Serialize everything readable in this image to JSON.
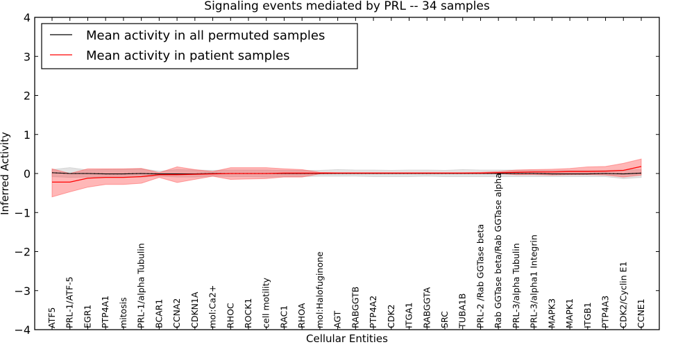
{
  "chart_data": {
    "type": "line",
    "title": "Signaling events mediated by PRL -- 34 samples",
    "xlabel": "Cellular Entities",
    "ylabel": "Inferred Activity",
    "ylim": [
      -4,
      4
    ],
    "yticks": [
      -4,
      -3,
      -2,
      -1,
      0,
      1,
      2,
      3,
      4
    ],
    "ytick_labels": [
      "−4",
      "−3",
      "−2",
      "−1",
      "0",
      "1",
      "2",
      "3",
      "4"
    ],
    "grid": false,
    "legend_position": "top-left",
    "categories": [
      "ATF5",
      "PRL-1/ATF-5",
      "EGR1",
      "PTP4A1",
      "mitosis",
      "PRL-1/alpha Tubulin",
      "BCAR1",
      "CCNA2",
      "CDKN1A",
      "mol:Ca2+",
      "RHOC",
      "ROCK1",
      "cell motility",
      "RAC1",
      "RHOA",
      "mol:Halofuginone",
      "AGT",
      "RABGGTB",
      "PTP4A2",
      "CDK2",
      "ITGA1",
      "RABGGTA",
      "SRC",
      "TUBA1B",
      "PRL-2 /Rab GGTase beta",
      "Rab GGTase beta/Rab GGTase alpha",
      "PRL-3/alpha Tubulin",
      "PRL-3/alpha1 Integrin",
      "MAPK3",
      "MAPK1",
      "ITGB1",
      "PTP4A3",
      "CDK2/Cyclin E1",
      "CCNE1"
    ],
    "series": [
      {
        "name": "Mean activity in all permuted samples",
        "color": "#000000",
        "values": [
          0.02,
          0.0,
          0.0,
          -0.01,
          -0.01,
          0.0,
          -0.01,
          -0.01,
          -0.01,
          0.0,
          0.0,
          0.0,
          0.0,
          0.0,
          0.0,
          0.0,
          0.0,
          0.0,
          0.0,
          0.0,
          0.0,
          0.0,
          0.0,
          0.0,
          0.0,
          0.0,
          0.0,
          0.0,
          -0.01,
          -0.01,
          -0.01,
          0.0,
          -0.01,
          0.01
        ],
        "band_lower": [
          -0.08,
          -0.1,
          -0.09,
          -0.09,
          -0.09,
          -0.09,
          -0.07,
          -0.09,
          -0.09,
          -0.07,
          -0.08,
          -0.08,
          -0.09,
          -0.08,
          -0.08,
          -0.07,
          -0.07,
          -0.07,
          -0.08,
          -0.08,
          -0.08,
          -0.07,
          -0.08,
          -0.08,
          -0.08,
          -0.08,
          -0.08,
          -0.08,
          -0.08,
          -0.08,
          -0.08,
          -0.08,
          -0.13,
          -0.1
        ],
        "band_upper": [
          0.1,
          0.15,
          0.09,
          0.1,
          0.11,
          0.12,
          0.06,
          0.1,
          0.09,
          0.08,
          0.09,
          0.09,
          0.09,
          0.08,
          0.08,
          0.08,
          0.1,
          0.09,
          0.09,
          0.08,
          0.09,
          0.09,
          0.08,
          0.1,
          0.09,
          0.09,
          0.09,
          0.08,
          0.08,
          0.08,
          0.08,
          0.08,
          0.09,
          0.1
        ]
      },
      {
        "name": "Mean activity in patient samples",
        "color": "#ff0000",
        "values": [
          -0.22,
          -0.22,
          -0.12,
          -0.1,
          -0.1,
          -0.08,
          -0.03,
          -0.03,
          -0.02,
          -0.01,
          0.0,
          0.0,
          0.0,
          0.01,
          0.01,
          0.01,
          0.01,
          0.01,
          0.01,
          0.01,
          0.01,
          0.01,
          0.01,
          0.01,
          0.01,
          0.02,
          0.03,
          0.04,
          0.04,
          0.05,
          0.05,
          0.06,
          0.08,
          0.18
        ],
        "band_lower": [
          -0.6,
          -0.47,
          -0.35,
          -0.28,
          -0.28,
          -0.25,
          -0.1,
          -0.23,
          -0.15,
          -0.07,
          -0.15,
          -0.14,
          -0.13,
          -0.09,
          -0.09,
          -0.01,
          0.0,
          0.0,
          0.0,
          0.0,
          0.0,
          0.0,
          0.0,
          0.0,
          0.0,
          0.0,
          -0.03,
          -0.03,
          -0.04,
          -0.03,
          -0.03,
          -0.04,
          -0.09,
          -0.04
        ],
        "band_upper": [
          0.12,
          0.0,
          0.12,
          0.12,
          0.12,
          0.13,
          0.02,
          0.17,
          0.1,
          0.05,
          0.15,
          0.15,
          0.15,
          0.12,
          0.1,
          0.03,
          0.02,
          0.02,
          0.02,
          0.02,
          0.02,
          0.02,
          0.02,
          0.02,
          0.03,
          0.05,
          0.09,
          0.1,
          0.11,
          0.13,
          0.17,
          0.18,
          0.26,
          0.37
        ]
      }
    ],
    "legend": [
      {
        "label": "Mean activity in all permuted samples",
        "color": "#000000"
      },
      {
        "label": "Mean activity in patient samples",
        "color": "#ff0000"
      }
    ]
  }
}
